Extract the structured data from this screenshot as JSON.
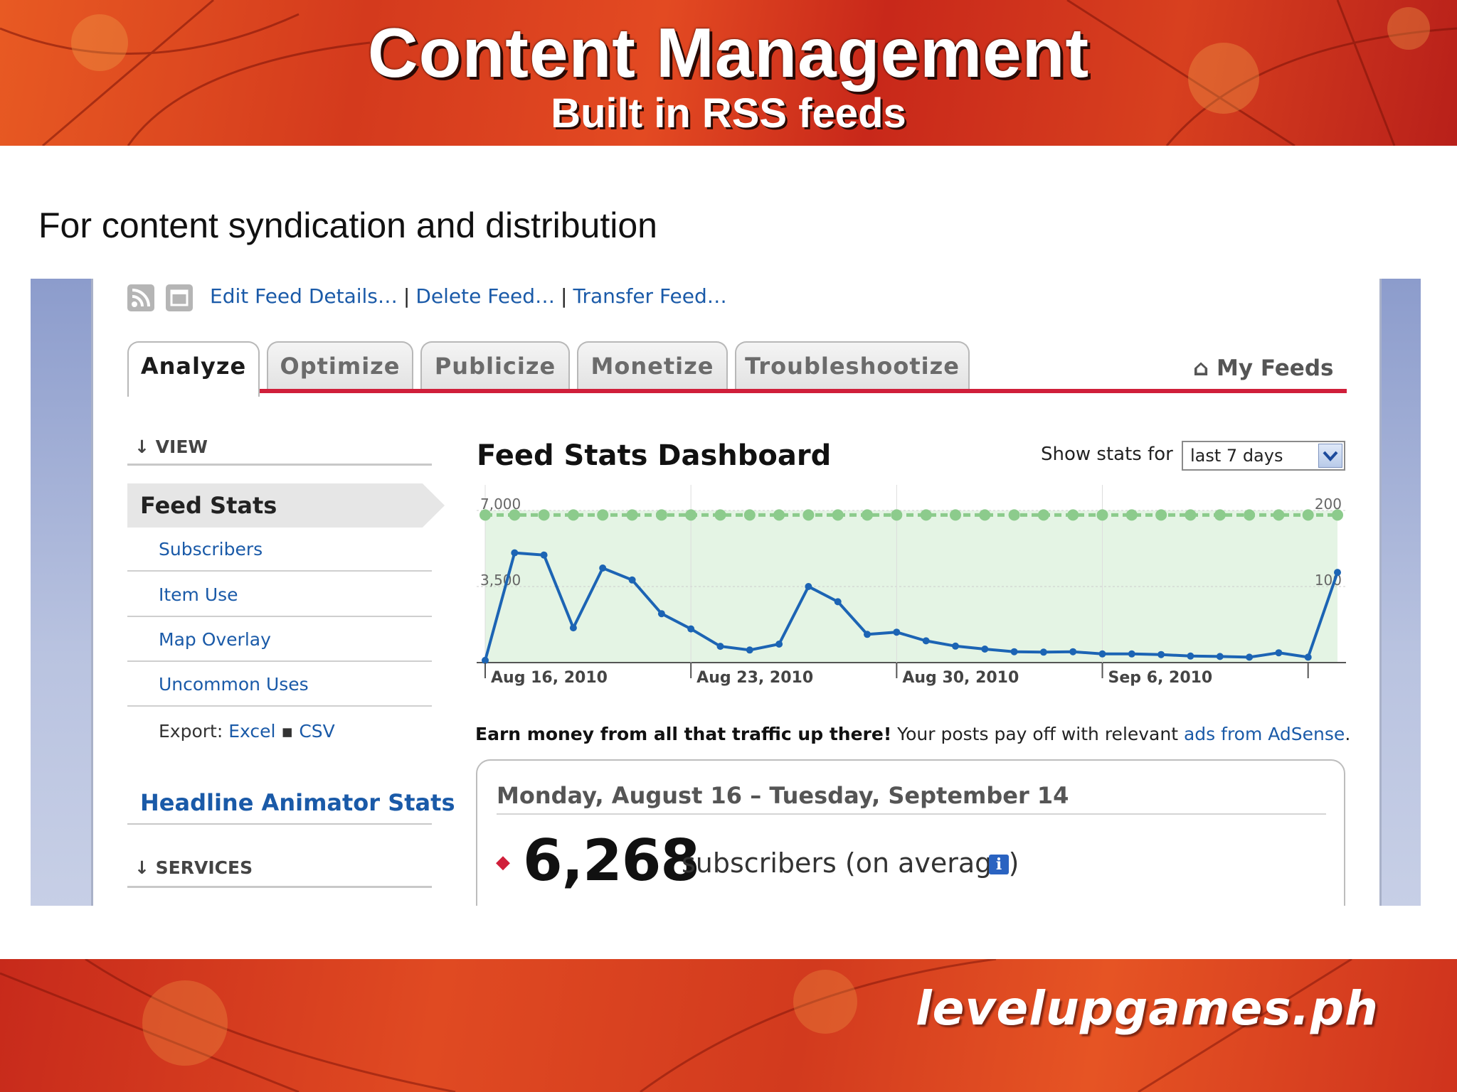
{
  "slide": {
    "title": "Content Management",
    "subtitle": "Built in RSS feeds",
    "intro": "For content syndication and distribution",
    "brand": "levelupgames.ph"
  },
  "toolbar": {
    "links": [
      "Edit Feed Details…",
      "Delete Feed…",
      "Transfer Feed…"
    ],
    "separator": "|"
  },
  "tabs": [
    {
      "label": "Analyze",
      "active": true
    },
    {
      "label": "Optimize",
      "active": false
    },
    {
      "label": "Publicize",
      "active": false
    },
    {
      "label": "Monetize",
      "active": false
    },
    {
      "label": "Troubleshootize",
      "active": false
    }
  ],
  "my_feeds": "My Feeds",
  "sidebar": {
    "view_heading": "VIEW",
    "section_arrow": "↓",
    "feed_stats": "Feed Stats",
    "items": [
      "Subscribers",
      "Item Use",
      "Map Overlay",
      "Uncommon Uses"
    ],
    "export_label": "Export:",
    "export_excel": "Excel",
    "export_bullet": "▪",
    "export_csv": "CSV",
    "headline_stats": "Headline Animator Stats",
    "services_heading": "SERVICES"
  },
  "dashboard": {
    "title": "Feed Stats Dashboard",
    "show_stats_label": "Show stats for",
    "range_selected": "last 7 days"
  },
  "chart_data": {
    "type": "line",
    "x_tick_labels": [
      "Aug 16, 2010",
      "Aug 23, 2010",
      "Aug 30, 2010",
      "Sep 6, 2010"
    ],
    "y_left_ticks": [
      "7,000",
      "3,500"
    ],
    "y_right_ticks": [
      "200",
      "100"
    ],
    "ylim_left": [
      0,
      7000
    ],
    "ylim_right": [
      0,
      200
    ],
    "series": [
      {
        "axis": "right",
        "color": "#8ccb8c",
        "values": [
          194,
          194,
          194,
          194,
          194,
          194,
          194,
          194,
          194,
          194,
          194,
          194,
          194,
          194,
          194,
          194,
          194,
          194,
          194,
          194,
          194,
          194,
          194,
          194,
          194,
          194,
          194,
          194,
          194,
          194
        ]
      },
      {
        "axis": "left",
        "color": "#1c64b4",
        "values": [
          100,
          5050,
          4950,
          1600,
          4350,
          3800,
          2250,
          1550,
          750,
          580,
          850,
          3500,
          2800,
          1300,
          1400,
          1000,
          760,
          620,
          500,
          480,
          500,
          400,
          400,
          370,
          300,
          280,
          250,
          450,
          250,
          4150
        ]
      }
    ],
    "fill_color": "#e4f4e4"
  },
  "promo": {
    "bold": "Earn money from all that traffic up there!",
    "text": " Your posts pay off with relevant ",
    "link": "ads from AdSense",
    "end": "."
  },
  "summary": {
    "date_range": "Monday, August 16 – Tuesday, September 14",
    "bullet": "◆",
    "count": "6,268",
    "label": "subscribers (on average)",
    "info": "i"
  }
}
